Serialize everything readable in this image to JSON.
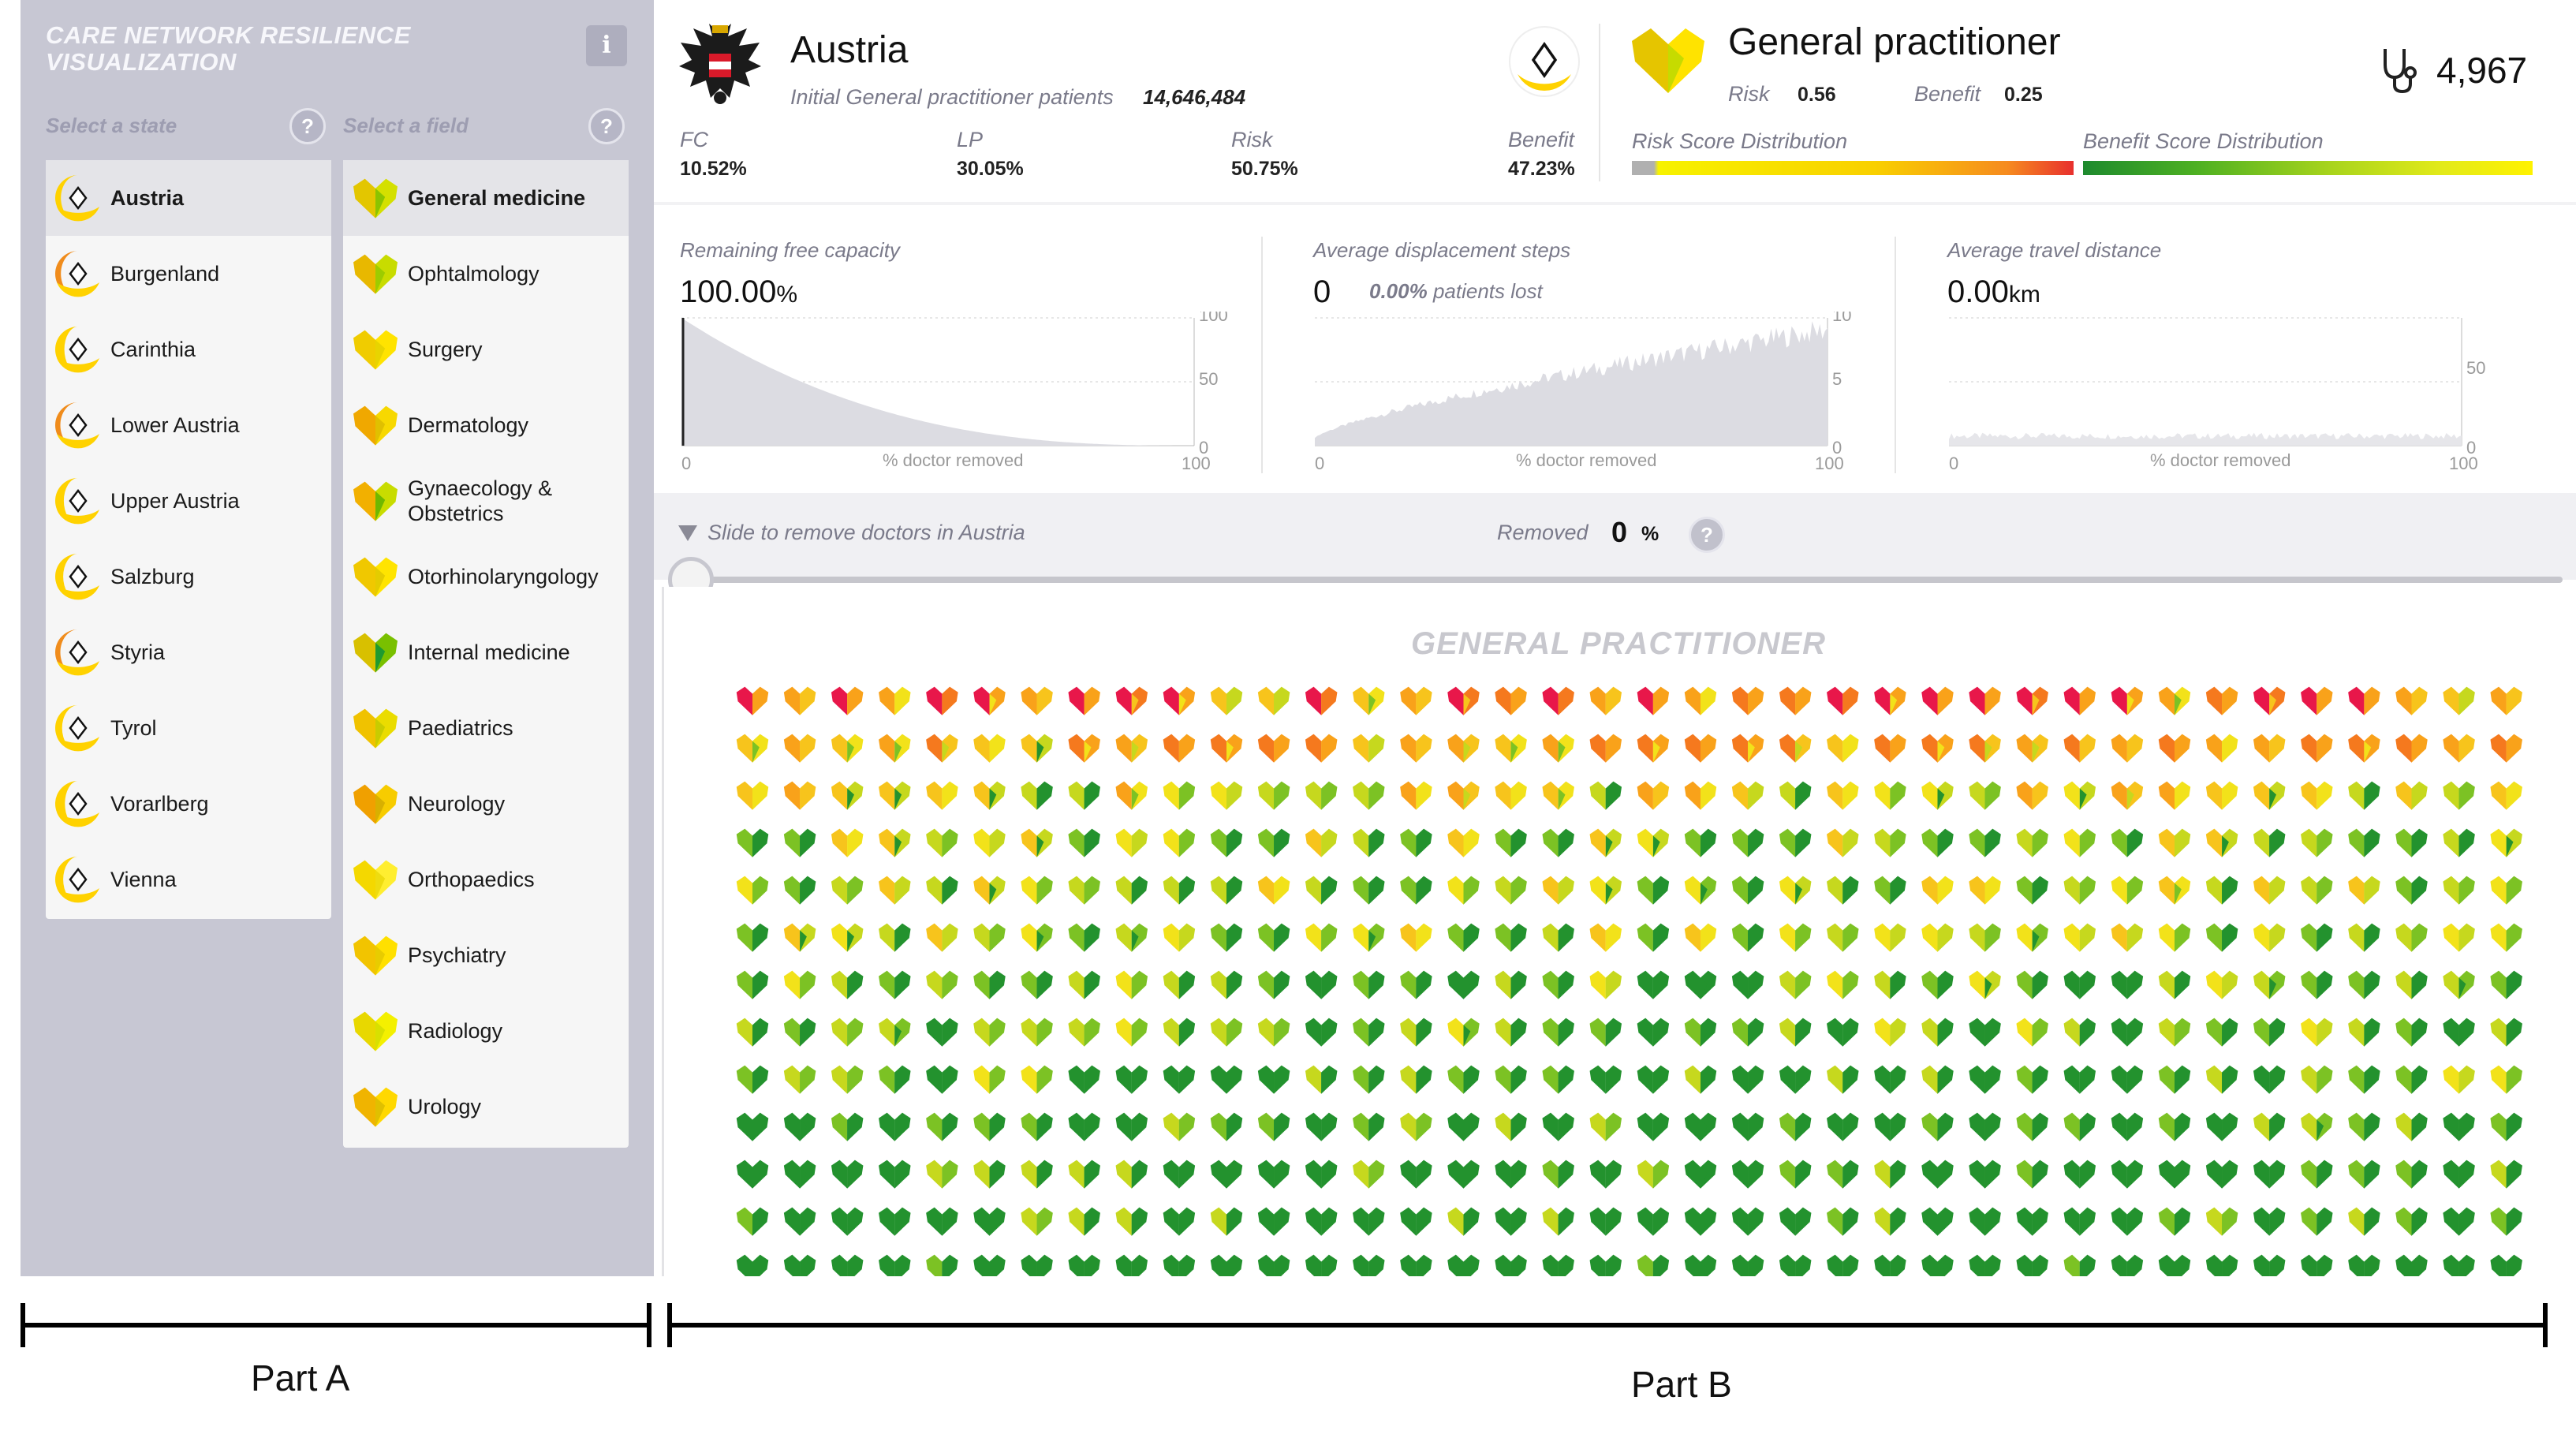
{
  "app": {
    "title_line1": "CARE NETWORK RESILIENCE",
    "title_line2": "VISUALIZATION",
    "info_label": "i"
  },
  "states": {
    "label": "Select a state",
    "help": "?",
    "items": [
      {
        "label": "Austria",
        "selected": true,
        "fill": "#ffd200",
        "share": 0.5
      },
      {
        "label": "Burgenland",
        "fill": "#f08c1c",
        "share": 0.5
      },
      {
        "label": "Carinthia",
        "fill": "#ffd200",
        "share": 0.2
      },
      {
        "label": "Lower Austria",
        "fill": "#f08c1c",
        "share": 0.55
      },
      {
        "label": "Upper Austria",
        "fill": "#ffd200",
        "share": 0.25
      },
      {
        "label": "Salzburg",
        "fill": "#ffd200",
        "share": 0.3
      },
      {
        "label": "Styria",
        "fill": "#f08c1c",
        "share": 0.55
      },
      {
        "label": "Tyrol",
        "fill": "#ffd200",
        "share": 0.4
      },
      {
        "label": "Vorarlberg",
        "fill": "#ffd200",
        "share": 0.15
      },
      {
        "label": "Vienna",
        "fill": "#ffd200",
        "share": 0.3
      }
    ]
  },
  "fields": {
    "label": "Select a field",
    "help": "?",
    "items": [
      {
        "label": "General medicine",
        "selected": true,
        "left": "#e3c600",
        "right": "#d4e000",
        "mid": "#8bc400"
      },
      {
        "label": "Ophtalmology",
        "left": "#e8b800",
        "right": "#c8dc00",
        "mid": "#9ccc00"
      },
      {
        "label": "Surgery",
        "left": "#f0cc00",
        "right": "#ffe300",
        "mid": "#e8d400"
      },
      {
        "label": "Dermatology",
        "left": "#f0a800",
        "right": "#f7d800",
        "mid": "#e0c000"
      },
      {
        "label": "Gynaecology &",
        "label2": "Obstetrics",
        "left": "#f2b000",
        "right": "#c8dc00",
        "mid": "#6fb800"
      },
      {
        "label": "Otorhinolaryngology",
        "left": "#f0c800",
        "right": "#ffe400",
        "mid": "#e4cc00"
      },
      {
        "label": "Internal medicine",
        "left": "#d8c000",
        "right": "#79c000",
        "mid": "#1f9a30"
      },
      {
        "label": "Paediatrics",
        "left": "#f0c200",
        "right": "#eadc00",
        "mid": "#c8cc00"
      },
      {
        "label": "Neurology",
        "left": "#f0a000",
        "right": "#f7cc00",
        "mid": "#d8b000"
      },
      {
        "label": "Orthopaedics",
        "left": "#f4d800",
        "right": "#ffee30",
        "mid": "#eedc10"
      },
      {
        "label": "Psychiatry",
        "left": "#f2c400",
        "right": "#ffe000",
        "mid": "#e8cc00"
      },
      {
        "label": "Radiology",
        "left": "#e8d800",
        "right": "#f4f000",
        "mid": "#d8e000"
      },
      {
        "label": "Urology",
        "left": "#f0b400",
        "right": "#ffd800",
        "mid": "#e0c000"
      }
    ]
  },
  "header": {
    "region": "Austria",
    "patients_label": "Initial General practitioner patients",
    "patients_value": "14,646,484",
    "fc_label": "FC",
    "fc_value": "10.52%",
    "lp_label": "LP",
    "lp_value": "30.05%",
    "risk_label": "Risk",
    "risk_value": "50.75%",
    "benefit_label": "Benefit",
    "benefit_value": "47.23%",
    "field_title": "General practitioner",
    "field_risk_label": "Risk",
    "field_risk_value": "0.56",
    "field_benefit_label": "Benefit",
    "field_benefit_value": "0.25",
    "doctor_count": "4,967",
    "risk_dist_label": "Risk Score Distribution",
    "benefit_dist_label": "Benefit Score Distribution"
  },
  "metrics": {
    "capacity": {
      "label": "Remaining free capacity",
      "value": "100.00",
      "unit": "%",
      "xlabel": "% doctor removed",
      "y_ticks": [
        "100",
        "50",
        "0"
      ],
      "x_ticks": [
        "0",
        "100"
      ],
      "ylim": [
        0,
        100
      ]
    },
    "displacement": {
      "label": "Average displacement steps",
      "value": "0",
      "lost_value": "0.00%",
      "lost_label": "patients lost",
      "xlabel": "% doctor removed",
      "y_ticks": [
        "10",
        "5",
        "0"
      ],
      "x_ticks": [
        "0",
        "100"
      ],
      "ylim": [
        0,
        10
      ]
    },
    "travel": {
      "label": "Average travel distance",
      "value": "0.00",
      "unit": "km",
      "xlabel": "% doctor removed",
      "y_ticks": [
        "50",
        "0"
      ],
      "x_ticks": [
        "0",
        "100"
      ],
      "ylim": [
        0,
        50
      ]
    }
  },
  "slider": {
    "label": "Slide to remove doctors in Austria",
    "removed_label": "Removed",
    "removed_value": "0",
    "removed_unit": "%",
    "help": "?",
    "position": 0
  },
  "grid": {
    "title": "GENERAL PRACTITIONER",
    "columns": 38,
    "rows": 13
  },
  "parts": {
    "a": "Part A",
    "b": "Part B"
  },
  "colors": {
    "sidebar_bg": "#c7c7d3",
    "heart_palette": [
      "#e8174a",
      "#f5791e",
      "#f9a21a",
      "#f7c41c",
      "#f2e21a",
      "#c6d81e",
      "#7cc224",
      "#23922e"
    ]
  }
}
